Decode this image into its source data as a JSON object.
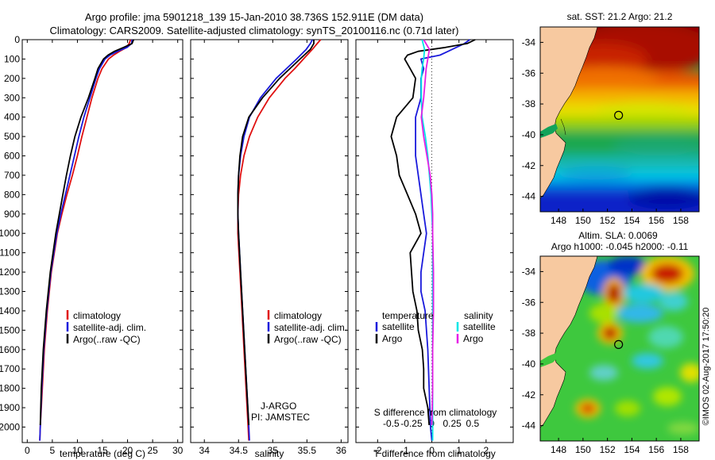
{
  "title": {
    "line1": "Argo profile: jma 5901218_139 15-Jan-2010 38.736S 152.911E (DM data)",
    "line2": "Climatology: CARS2009. Satellite-adjusted climatology: synTS_20100116.nc (0.71d later)"
  },
  "watermark": "©IMOS 02-Aug-2017 17:50:20",
  "colors": {
    "climatology": "#e01010",
    "satellite": "#1a1adc",
    "argo": "#000000",
    "sat_salinity": "#00e6e6",
    "argo_salinity": "#e61ee6",
    "land": "#f7c9a0"
  },
  "chart_data": [
    {
      "id": "temperature",
      "type": "line",
      "xlabel": "temperature (deg C)",
      "xlim": [
        -1,
        31
      ],
      "xticks": [
        0,
        5,
        10,
        15,
        20,
        25,
        30
      ],
      "xtick_labels": [
        "0",
        "5",
        "10",
        "15",
        "20",
        "25",
        "30"
      ],
      "ylim": [
        2080,
        0
      ],
      "yticks": [
        0,
        100,
        200,
        300,
        400,
        500,
        600,
        700,
        800,
        900,
        1000,
        1100,
        1200,
        1300,
        1400,
        1500,
        1600,
        1700,
        1800,
        1900,
        2000
      ],
      "ytick_labels": [
        "0",
        "100",
        "200",
        "300",
        "400",
        "500",
        "600",
        "700",
        "800",
        "900",
        "1000",
        "1100",
        "1200",
        "1300",
        "1400",
        "1500",
        "1600",
        "1700",
        "1800",
        "1900",
        "2000"
      ],
      "legend": [
        "climatology",
        "satellite-adj. clim.",
        "Argo(..raw -QC)"
      ],
      "series": [
        {
          "name": "climatology",
          "color": "#e01010",
          "depth": [
            0,
            20,
            40,
            60,
            80,
            100,
            150,
            200,
            300,
            400,
            500,
            600,
            700,
            800,
            900,
            1000,
            1200,
            1400,
            1600,
            1800,
            2000,
            2070
          ],
          "values": [
            20.6,
            20.3,
            19.8,
            18.4,
            17.2,
            16.2,
            14.9,
            14.1,
            12.9,
            11.9,
            10.9,
            10.0,
            9.0,
            7.9,
            6.9,
            6.0,
            4.8,
            4.0,
            3.4,
            3.0,
            2.6,
            2.5
          ]
        },
        {
          "name": "satellite-adj. clim.",
          "color": "#1a1adc",
          "depth": [
            0,
            20,
            40,
            60,
            80,
            100,
            150,
            200,
            300,
            400,
            500,
            600,
            700,
            800,
            900,
            1000,
            1200,
            1400,
            1600,
            1800,
            2000,
            2070
          ],
          "values": [
            20.9,
            20.8,
            19.9,
            18.0,
            16.5,
            15.5,
            14.4,
            13.7,
            12.5,
            11.3,
            10.3,
            9.4,
            8.5,
            7.6,
            6.7,
            5.9,
            4.7,
            3.9,
            3.3,
            2.9,
            2.6,
            2.5
          ]
        },
        {
          "name": "Argo(..raw -QC)",
          "color": "#000000",
          "depth": [
            0,
            20,
            40,
            60,
            80,
            100,
            150,
            200,
            300,
            400,
            500,
            600,
            700,
            800,
            900,
            1000,
            1200,
            1400,
            1600,
            1800,
            1990
          ],
          "values": [
            21.2,
            20.9,
            19.2,
            17.4,
            16.1,
            15.2,
            14.1,
            13.5,
            12.2,
            10.7,
            9.5,
            8.6,
            7.8,
            7.1,
            6.4,
            5.7,
            4.6,
            3.8,
            3.2,
            2.8,
            2.6
          ]
        }
      ]
    },
    {
      "id": "salinity",
      "type": "line",
      "xlabel": "salinity",
      "xlim": [
        33.8,
        36.1
      ],
      "xticks": [
        34,
        34.5,
        35,
        35.5,
        36
      ],
      "xtick_labels": [
        "34",
        "34.5",
        "35",
        "35.5",
        "36"
      ],
      "ylim": [
        2080,
        0
      ],
      "legend": [
        "climatology",
        "satellite-adj. clim.",
        "Argo(..raw -QC)"
      ],
      "annotation": [
        "J-ARGO",
        "PI: JAMSTEC"
      ],
      "series": [
        {
          "name": "climatology",
          "color": "#e01010",
          "depth": [
            0,
            20,
            50,
            100,
            150,
            200,
            300,
            400,
            500,
            600,
            700,
            800,
            900,
            1000,
            1200,
            1400,
            1600,
            1800,
            2000,
            2070
          ],
          "values": [
            35.7,
            35.65,
            35.58,
            35.45,
            35.32,
            35.18,
            34.95,
            34.78,
            34.66,
            34.58,
            34.53,
            34.5,
            34.49,
            34.49,
            34.52,
            34.55,
            34.58,
            34.61,
            34.64,
            34.65
          ]
        },
        {
          "name": "satellite-adj. clim.",
          "color": "#1a1adc",
          "depth": [
            0,
            20,
            50,
            100,
            150,
            200,
            300,
            400,
            500,
            600,
            700,
            800,
            900,
            1000,
            1200,
            1400,
            1600,
            1800,
            2000,
            2070
          ],
          "values": [
            35.58,
            35.55,
            35.49,
            35.35,
            35.2,
            35.05,
            34.82,
            34.66,
            34.58,
            34.53,
            34.5,
            34.49,
            34.49,
            34.5,
            34.53,
            34.56,
            34.59,
            34.62,
            34.65,
            34.66
          ]
        },
        {
          "name": "Argo(..raw -QC)",
          "color": "#000000",
          "depth": [
            0,
            20,
            50,
            100,
            150,
            200,
            300,
            400,
            500,
            600,
            700,
            800,
            900,
            1000,
            1200,
            1400,
            1600,
            1800,
            1990
          ],
          "values": [
            35.6,
            35.6,
            35.55,
            35.4,
            35.25,
            35.1,
            34.85,
            34.65,
            34.56,
            34.52,
            34.5,
            34.49,
            34.49,
            34.5,
            34.53,
            34.56,
            34.59,
            34.62,
            34.65
          ]
        }
      ]
    },
    {
      "id": "differences",
      "type": "line",
      "xlabel": "T difference from climatology",
      "xlim": [
        -2.8,
        3.0
      ],
      "xticks": [
        -2,
        -1,
        0,
        1,
        2
      ],
      "xtick_labels": [
        "-2",
        "-1",
        "0",
        "1",
        "2"
      ],
      "top_xlabel": "S difference from climatology",
      "top_xticks": [
        -0.5,
        -0.25,
        0,
        0.25,
        0.5
      ],
      "top_xtick_labels": [
        "-0.5",
        "-0.25",
        "0",
        "0.25",
        "0.5"
      ],
      "ylim": [
        2080,
        0
      ],
      "legend_headers": [
        "temperature",
        "salinity"
      ],
      "legend_left": [
        "satellite",
        "Argo"
      ],
      "legend_right": [
        "satellite",
        "Argo"
      ],
      "series": [
        {
          "name": "temperature satellite",
          "color": "#1a1adc",
          "depth": [
            0,
            20,
            40,
            60,
            80,
            100,
            150,
            200,
            300,
            400,
            500,
            600,
            700,
            800,
            900,
            1000,
            1100,
            1200,
            1300,
            1400,
            1500,
            1600,
            1800,
            2000,
            2070
          ],
          "values": [
            1.4,
            1.2,
            0.9,
            0.6,
            0.3,
            -0.4,
            -0.3,
            -0.4,
            -0.4,
            -0.6,
            -0.6,
            -0.6,
            -0.5,
            -0.4,
            -0.3,
            -0.2,
            -0.3,
            -0.4,
            -0.4,
            -0.25,
            -0.2,
            -0.15,
            -0.1,
            -0.05,
            0.0
          ]
        },
        {
          "name": "temperature Argo",
          "color": "#000000",
          "depth": [
            0,
            20,
            40,
            60,
            80,
            100,
            150,
            200,
            300,
            400,
            500,
            600,
            700,
            800,
            900,
            1000,
            1100,
            1200,
            1300,
            1400,
            1500,
            1600,
            1700,
            1800,
            1900,
            1990
          ],
          "values": [
            1.6,
            1.3,
            0.5,
            -0.5,
            -0.9,
            -1.0,
            -0.8,
            -0.6,
            -0.7,
            -1.3,
            -1.5,
            -1.3,
            -1.2,
            -0.9,
            -0.6,
            -0.4,
            -0.8,
            -0.75,
            -0.7,
            -0.55,
            -0.5,
            -0.35,
            -0.3,
            -0.3,
            -0.15,
            -0.1
          ]
        },
        {
          "name": "salinity satellite",
          "color": "#00e6e6",
          "depth": [
            0,
            50,
            100,
            150,
            200,
            300,
            400,
            500,
            600,
            700,
            800,
            900,
            1000,
            1200,
            1400,
            1600,
            1800,
            2000,
            2070
          ],
          "values": [
            -0.12,
            -0.09,
            -0.1,
            -0.12,
            -0.13,
            -0.13,
            -0.12,
            -0.08,
            -0.05,
            -0.03,
            -0.01,
            0.0,
            0.01,
            0.01,
            0.01,
            0.01,
            0.01,
            0.01,
            0.01
          ]
        },
        {
          "name": "salinity Argo",
          "color": "#e61ee6",
          "depth": [
            0,
            50,
            100,
            150,
            200,
            300,
            400,
            500,
            600,
            700,
            800,
            900,
            1000,
            1200,
            1400,
            1600,
            1800,
            1990
          ],
          "values": [
            -0.1,
            -0.03,
            -0.05,
            -0.07,
            -0.08,
            -0.1,
            -0.13,
            -0.1,
            -0.06,
            -0.02,
            0.0,
            0.01,
            0.01,
            0.02,
            0.02,
            0.01,
            0.01,
            0.0
          ]
        }
      ]
    }
  ],
  "maps": {
    "sst": {
      "title": "sat. SST: 21.2 Argo: 21.2",
      "lon_range": [
        146.5,
        159.5
      ],
      "lat_range": [
        -45,
        -33
      ],
      "argo_position": [
        152.911,
        -38.736
      ],
      "xtick_labels": [
        "148",
        "150",
        "152",
        "154",
        "156",
        "158"
      ],
      "ytick_labels": [
        "-34",
        "-36",
        "-38",
        "-40",
        "-42",
        "-44"
      ]
    },
    "sla": {
      "title": "Altim. SLA: 0.0069",
      "subtitle": "Argo h1000: -0.045 h2000: -0.11",
      "lon_range": [
        146.5,
        159.5
      ],
      "lat_range": [
        -45,
        -33
      ],
      "argo_position": [
        152.911,
        -38.736
      ],
      "xtick_labels": [
        "148",
        "150",
        "152",
        "154",
        "156",
        "158"
      ],
      "ytick_labels": [
        "-34",
        "-36",
        "-38",
        "-40",
        "-42",
        "-44"
      ]
    }
  }
}
